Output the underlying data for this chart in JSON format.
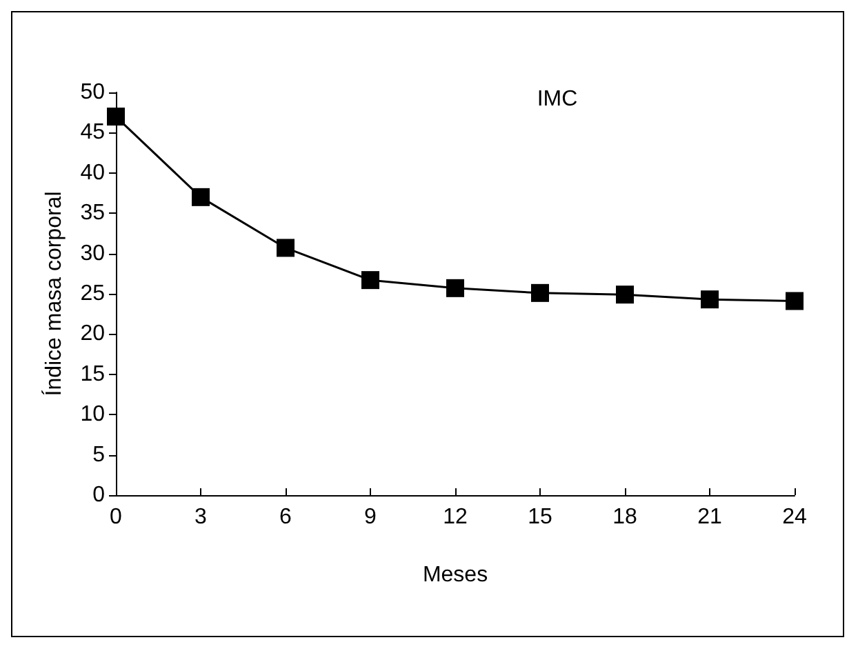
{
  "chart_data": {
    "type": "line",
    "title": "IMC",
    "xlabel": "Meses",
    "ylabel": "Índice masa corporal",
    "x": [
      0,
      3,
      6,
      9,
      12,
      15,
      18,
      21,
      24
    ],
    "series": [
      {
        "color": "#000000",
        "values": [
          47,
          37,
          30.7,
          26.7,
          25.7,
          25.1,
          24.9,
          24.3,
          24.1
        ]
      }
    ],
    "xlim": [
      0,
      24
    ],
    "xticks": [
      0,
      3,
      6,
      9,
      12,
      15,
      18,
      21,
      24
    ],
    "ylim": [
      0,
      50
    ],
    "yticks": [
      0,
      5,
      10,
      15,
      20,
      25,
      30,
      35,
      40,
      45,
      50
    ],
    "grid": false,
    "marker": "square",
    "line_style": "solid"
  }
}
